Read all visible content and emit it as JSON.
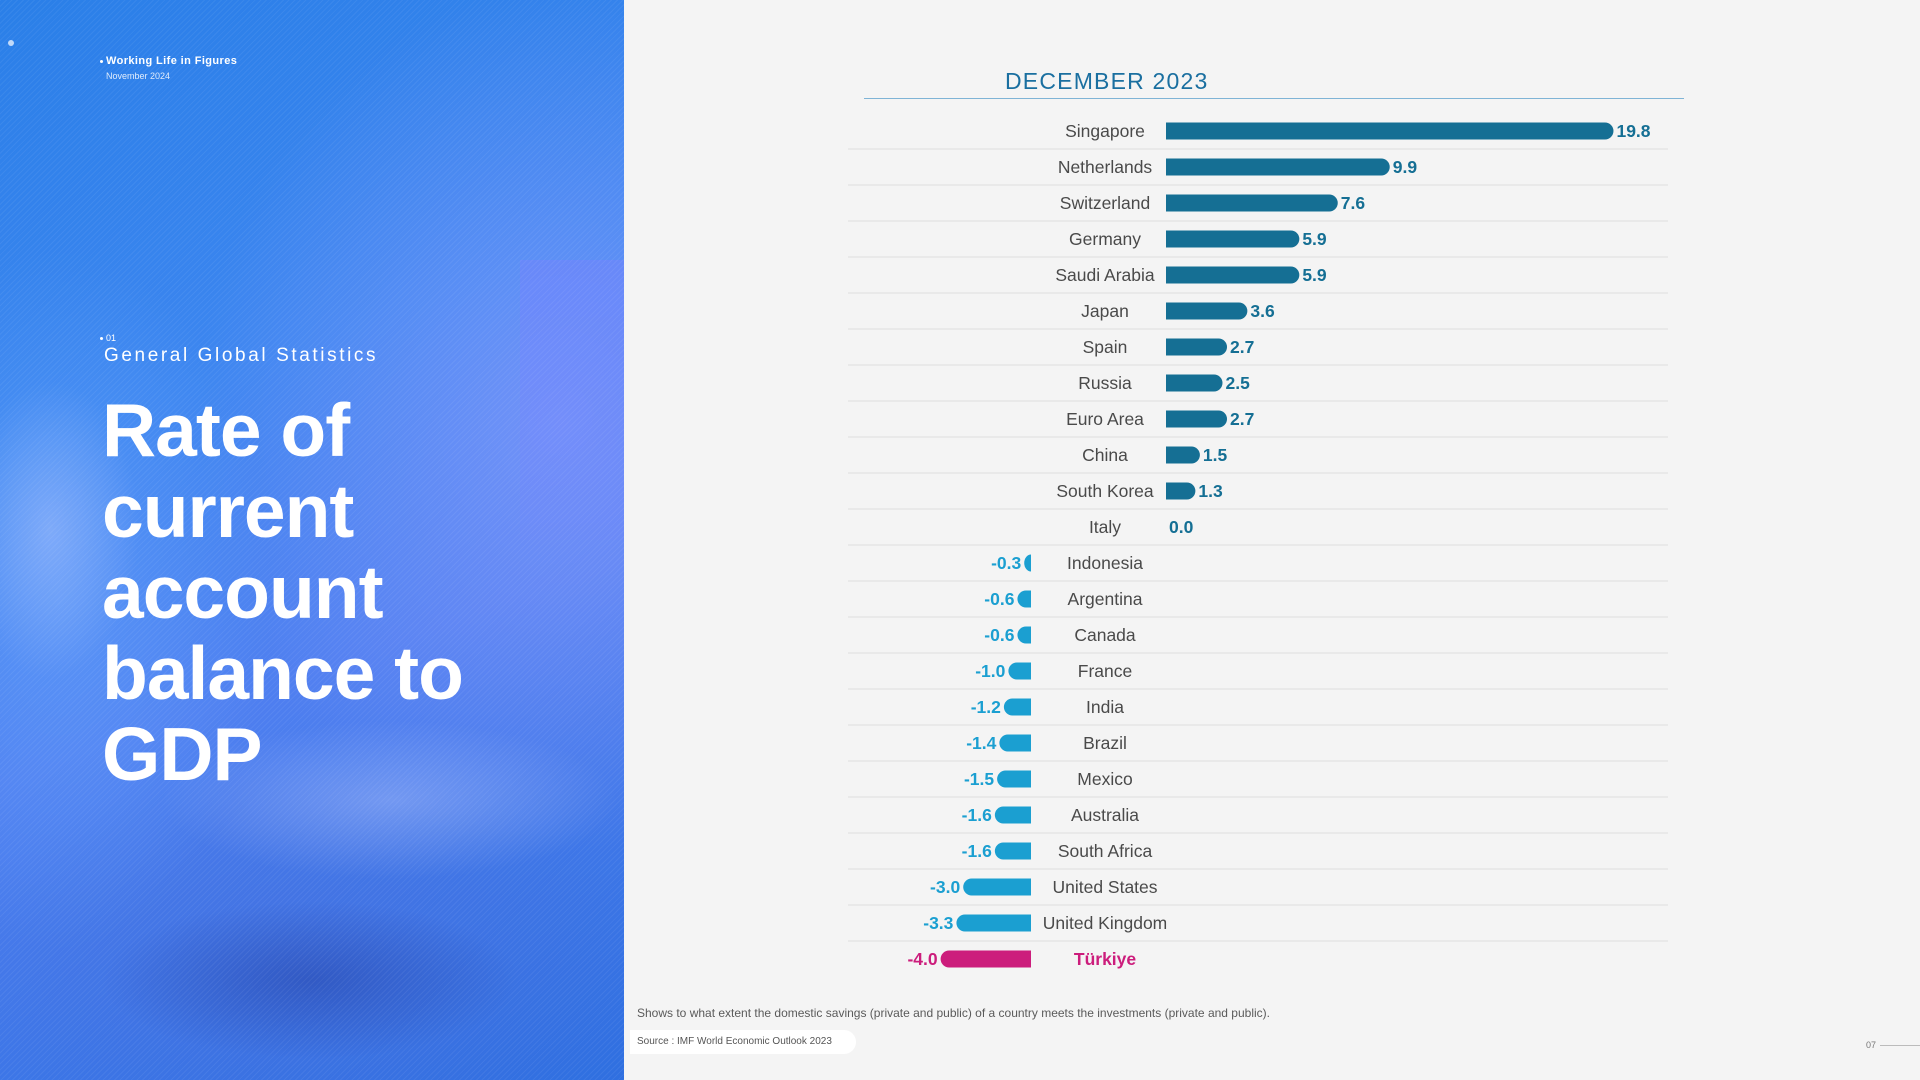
{
  "brand": {
    "title": "Working Life in Figures",
    "date": "November 2024"
  },
  "section": {
    "number": "01",
    "name": "General Global Statistics"
  },
  "headline": "Rate of current account balance to GDP",
  "footer": {
    "note": "Shows to what extent the domestic savings (private and public) of a country meets the investments (private and public).",
    "source": "Source : IMF World Economic Outlook 2023",
    "page": "07"
  },
  "colors": {
    "positive": "#156f94",
    "negative": "#1b9fd1",
    "highlight": "#cc1d7c",
    "label": "#4a4a4a"
  },
  "chart_data": {
    "type": "bar",
    "orientation": "horizontal",
    "title": "DECEMBER 2023",
    "categories": [
      "Singapore",
      "Netherlands",
      "Switzerland",
      "Germany",
      "Saudi Arabia",
      "Japan",
      "Spain",
      "Russia",
      "Euro Area",
      "China",
      "South Korea",
      "Italy",
      "Indonesia",
      "Argentina",
      "Canada",
      "France",
      "India",
      "Brazil",
      "Mexico",
      "Australia",
      "South Africa",
      "United States",
      "United Kingdom",
      "Türkiye"
    ],
    "values": [
      19.8,
      9.9,
      7.6,
      5.9,
      5.9,
      3.6,
      2.7,
      2.5,
      2.7,
      1.5,
      1.3,
      0.0,
      -0.3,
      -0.6,
      -0.6,
      -1.0,
      -1.2,
      -1.4,
      -1.5,
      -1.6,
      -1.6,
      -3.0,
      -3.3,
      -4.0
    ],
    "value_labels": [
      "19.8",
      "9.9",
      "7.6",
      "5.9",
      "5.9",
      "3.6",
      "2.7",
      "2.5",
      "2.7",
      "1.5",
      "1.3",
      "0.0",
      "-0.3",
      "-0.6",
      "-0.6",
      "-1.0",
      "-1.2",
      "-1.4",
      "-1.5",
      "-1.6",
      "-1.6",
      "-3.0",
      "-3.3",
      "-4.0"
    ],
    "highlight": "Türkiye",
    "grid": false
  }
}
